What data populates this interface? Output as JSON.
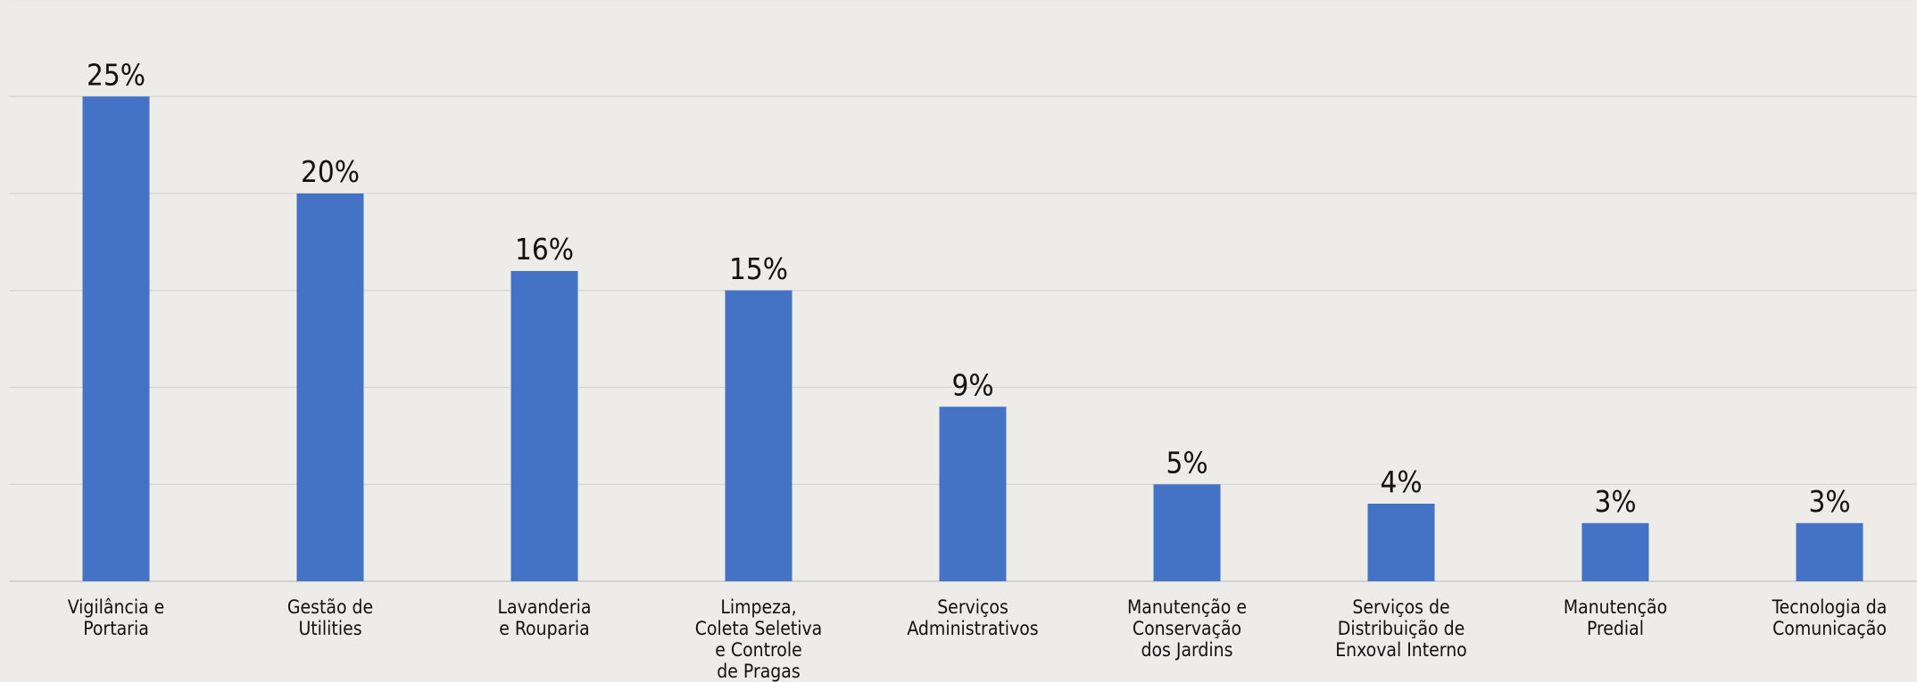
{
  "chart_data": {
    "type": "bar",
    "categories": [
      [
        "Vigilância e",
        "Portaria"
      ],
      [
        "Gestão de",
        "Utilities"
      ],
      [
        "Lavanderia",
        "e Rouparia"
      ],
      [
        "Limpeza,",
        "Coleta Seletiva",
        "e Controle",
        "de Pragas"
      ],
      [
        "Serviços",
        "Administrativos"
      ],
      [
        "Manutenção e",
        "Conservação",
        "dos Jardins"
      ],
      [
        "Serviços de",
        "Distribuição de",
        "Enxoval Interno"
      ],
      [
        "Manutenção",
        "Predial"
      ],
      [
        "Tecnologia da",
        "Comunicação"
      ]
    ],
    "values": [
      25,
      20,
      16,
      15,
      9,
      5,
      4,
      3,
      3
    ],
    "value_labels": [
      "25%",
      "20%",
      "16%",
      "15%",
      "9%",
      "5%",
      "4%",
      "3%",
      "3%"
    ],
    "ylim": [
      0,
      30
    ],
    "grid": true,
    "colors": {
      "bar": "#4472C4",
      "background": "#EDECE8",
      "gridline": "#D6D5D1"
    }
  }
}
